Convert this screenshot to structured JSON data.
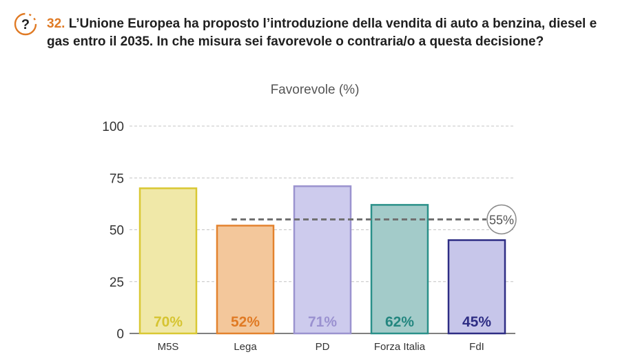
{
  "question": {
    "number": "32.",
    "text": "L’Unione Europea ha proposto l’introduzione della vendita di auto a benzina, diesel e gas entro il 2035. In che misura sei favorevole o contraria/o a questa decisione?",
    "icon": "question-mark-icon",
    "icon_glyph": "?"
  },
  "chart_data": {
    "type": "bar",
    "title": "Favorevole (%)",
    "xlabel": "",
    "ylabel": "",
    "categories": [
      "M5S",
      "Lega",
      "PD",
      "Forza Italia",
      "FdI"
    ],
    "values": [
      70,
      52,
      71,
      62,
      45
    ],
    "value_labels": [
      "70%",
      "52%",
      "71%",
      "62%",
      "45%"
    ],
    "ylim": [
      0,
      100
    ],
    "yticks": [
      0,
      25,
      50,
      75,
      100
    ],
    "grid": true,
    "reference_line": {
      "value": 55,
      "label": "55%"
    },
    "colors": {
      "fills": [
        "#f0e8a8",
        "#f3c79b",
        "#cdcbed",
        "#a3cbc9",
        "#c7c6ea"
      ],
      "strokes": [
        "#d9c833",
        "#e3822e",
        "#9b93cf",
        "#2a9089",
        "#2e2d84"
      ],
      "labels": [
        "#d6c431",
        "#e07a24",
        "#9a91d0",
        "#23867f",
        "#2e2d84"
      ],
      "accent": "#e07a24",
      "reference": "#707070"
    }
  }
}
